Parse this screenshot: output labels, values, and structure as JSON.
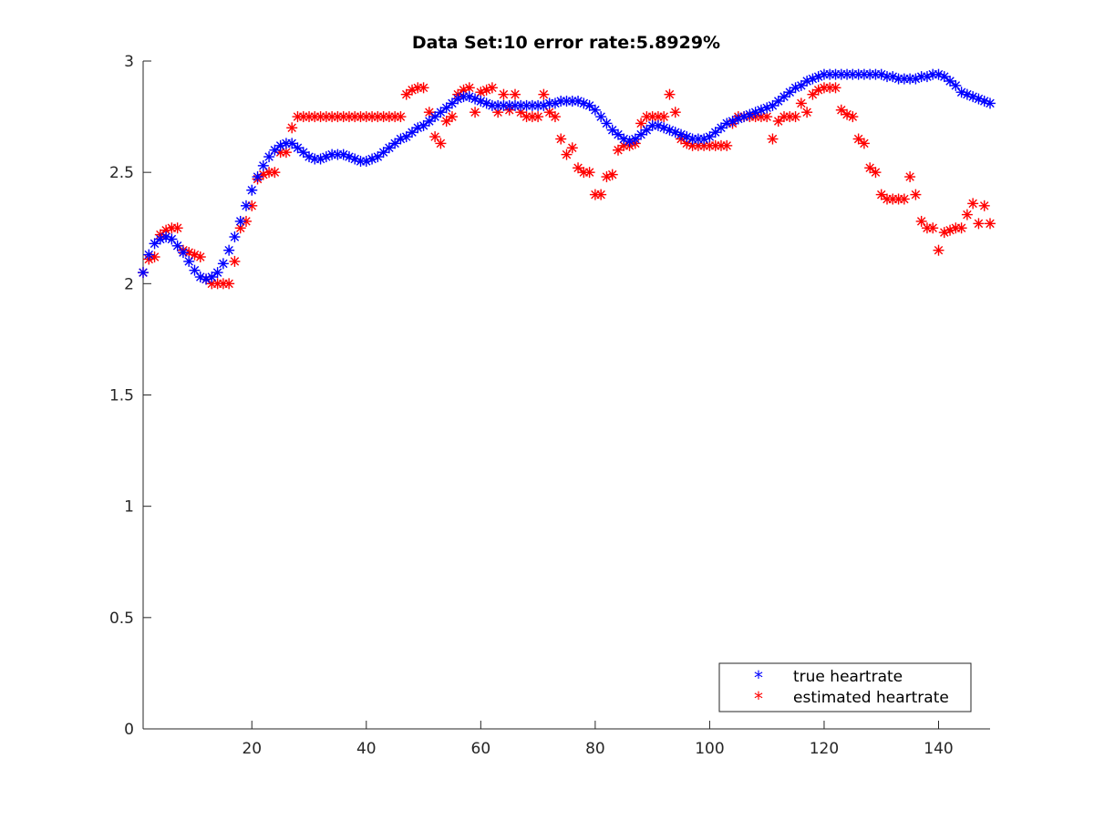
{
  "chart_data": {
    "type": "scatter",
    "title": "Data Set:10 error rate:5.8929%",
    "xlabel": "",
    "ylabel": "",
    "xlim": [
      1,
      149
    ],
    "ylim": [
      0,
      3
    ],
    "xticks": [
      20,
      40,
      60,
      80,
      100,
      120,
      140
    ],
    "yticks": [
      0,
      0.5,
      1,
      1.5,
      2,
      2.5,
      3
    ],
    "xtick_labels": [
      "20",
      "40",
      "60",
      "80",
      "100",
      "120",
      "140"
    ],
    "ytick_labels": [
      "0",
      "0.5",
      "1",
      "1.5",
      "2",
      "2.5",
      "3"
    ],
    "grid": false,
    "legend_position": "bottom-right",
    "marker": "*",
    "series": [
      {
        "name": "true heartrate",
        "color": "#0000ff",
        "x": [
          1,
          2,
          3,
          4,
          5,
          6,
          7,
          8,
          9,
          10,
          11,
          12,
          13,
          14,
          15,
          16,
          17,
          18,
          19,
          20,
          21,
          22,
          23,
          24,
          25,
          26,
          27,
          28,
          29,
          30,
          31,
          32,
          33,
          34,
          35,
          36,
          37,
          38,
          39,
          40,
          41,
          42,
          43,
          44,
          45,
          46,
          47,
          48,
          49,
          50,
          51,
          52,
          53,
          54,
          55,
          56,
          57,
          58,
          59,
          60,
          61,
          62,
          63,
          64,
          65,
          66,
          67,
          68,
          69,
          70,
          71,
          72,
          73,
          74,
          75,
          76,
          77,
          78,
          79,
          80,
          81,
          82,
          83,
          84,
          85,
          86,
          87,
          88,
          89,
          90,
          91,
          92,
          93,
          94,
          95,
          96,
          97,
          98,
          99,
          100,
          101,
          102,
          103,
          104,
          105,
          106,
          107,
          108,
          109,
          110,
          111,
          112,
          113,
          114,
          115,
          116,
          117,
          118,
          119,
          120,
          121,
          122,
          123,
          124,
          125,
          126,
          127,
          128,
          129,
          130,
          131,
          132,
          133,
          134,
          135,
          136,
          137,
          138,
          139,
          140,
          141,
          142,
          143,
          144,
          145,
          146,
          147,
          148,
          149
        ],
        "y": [
          2.05,
          2.13,
          2.18,
          2.2,
          2.21,
          2.2,
          2.17,
          2.14,
          2.1,
          2.06,
          2.03,
          2.02,
          2.03,
          2.05,
          2.09,
          2.15,
          2.21,
          2.28,
          2.35,
          2.42,
          2.48,
          2.53,
          2.57,
          2.6,
          2.62,
          2.63,
          2.63,
          2.61,
          2.59,
          2.57,
          2.56,
          2.56,
          2.57,
          2.58,
          2.58,
          2.58,
          2.57,
          2.56,
          2.55,
          2.55,
          2.56,
          2.57,
          2.59,
          2.61,
          2.63,
          2.65,
          2.66,
          2.68,
          2.7,
          2.71,
          2.73,
          2.75,
          2.77,
          2.79,
          2.81,
          2.83,
          2.84,
          2.84,
          2.83,
          2.82,
          2.81,
          2.8,
          2.8,
          2.8,
          2.8,
          2.8,
          2.8,
          2.8,
          2.8,
          2.8,
          2.8,
          2.81,
          2.81,
          2.82,
          2.82,
          2.82,
          2.82,
          2.81,
          2.8,
          2.78,
          2.75,
          2.72,
          2.69,
          2.67,
          2.65,
          2.64,
          2.65,
          2.67,
          2.69,
          2.71,
          2.71,
          2.7,
          2.69,
          2.68,
          2.67,
          2.66,
          2.65,
          2.65,
          2.65,
          2.66,
          2.68,
          2.7,
          2.72,
          2.73,
          2.74,
          2.75,
          2.76,
          2.77,
          2.78,
          2.79,
          2.8,
          2.82,
          2.84,
          2.86,
          2.88,
          2.89,
          2.91,
          2.92,
          2.93,
          2.94,
          2.94,
          2.94,
          2.94,
          2.94,
          2.94,
          2.94,
          2.94,
          2.94,
          2.94,
          2.94,
          2.93,
          2.93,
          2.92,
          2.92,
          2.92,
          2.92,
          2.93,
          2.93,
          2.94,
          2.94,
          2.93,
          2.91,
          2.89,
          2.86,
          2.85,
          2.84,
          2.83,
          2.82,
          2.81
        ]
      },
      {
        "name": "estimated heartrate",
        "color": "#ff0000",
        "x": [
          1,
          2,
          3,
          4,
          5,
          6,
          7,
          8,
          9,
          10,
          11,
          12,
          13,
          14,
          15,
          16,
          17,
          18,
          19,
          20,
          21,
          22,
          23,
          24,
          25,
          26,
          27,
          28,
          29,
          30,
          31,
          32,
          33,
          34,
          35,
          36,
          37,
          38,
          39,
          40,
          41,
          42,
          43,
          44,
          45,
          46,
          47,
          48,
          49,
          50,
          51,
          52,
          53,
          54,
          55,
          56,
          57,
          58,
          59,
          60,
          61,
          62,
          63,
          64,
          65,
          66,
          67,
          68,
          69,
          70,
          71,
          72,
          73,
          74,
          75,
          76,
          77,
          78,
          79,
          80,
          81,
          82,
          83,
          84,
          85,
          86,
          87,
          88,
          89,
          90,
          91,
          92,
          93,
          94,
          95,
          96,
          97,
          98,
          99,
          100,
          101,
          102,
          103,
          104,
          105,
          106,
          107,
          108,
          109,
          110,
          111,
          112,
          113,
          114,
          115,
          116,
          117,
          118,
          119,
          120,
          121,
          122,
          123,
          124,
          125,
          126,
          127,
          128,
          129,
          130,
          131,
          132,
          133,
          134,
          135,
          136,
          137,
          138,
          139,
          140,
          141,
          142,
          143,
          144,
          145,
          146,
          147,
          148,
          149
        ],
        "y": [
          2.05,
          2.11,
          2.12,
          2.22,
          2.24,
          2.25,
          2.25,
          2.15,
          2.14,
          2.13,
          2.12,
          2.02,
          2.0,
          2.0,
          2.0,
          2.0,
          2.1,
          2.25,
          2.28,
          2.35,
          2.47,
          2.49,
          2.5,
          2.5,
          2.59,
          2.59,
          2.7,
          2.75,
          2.75,
          2.75,
          2.75,
          2.75,
          2.75,
          2.75,
          2.75,
          2.75,
          2.75,
          2.75,
          2.75,
          2.75,
          2.75,
          2.75,
          2.75,
          2.75,
          2.75,
          2.75,
          2.85,
          2.87,
          2.88,
          2.88,
          2.77,
          2.66,
          2.63,
          2.73,
          2.75,
          2.85,
          2.87,
          2.88,
          2.77,
          2.86,
          2.87,
          2.88,
          2.77,
          2.85,
          2.78,
          2.85,
          2.77,
          2.75,
          2.75,
          2.75,
          2.85,
          2.77,
          2.75,
          2.65,
          2.58,
          2.61,
          2.52,
          2.5,
          2.5,
          2.4,
          2.4,
          2.48,
          2.49,
          2.6,
          2.62,
          2.62,
          2.63,
          2.72,
          2.75,
          2.75,
          2.75,
          2.75,
          2.85,
          2.77,
          2.65,
          2.63,
          2.62,
          2.62,
          2.62,
          2.62,
          2.62,
          2.62,
          2.62,
          2.72,
          2.75,
          2.75,
          2.75,
          2.75,
          2.75,
          2.75,
          2.65,
          2.73,
          2.75,
          2.75,
          2.75,
          2.81,
          2.77,
          2.85,
          2.87,
          2.88,
          2.88,
          2.88,
          2.78,
          2.76,
          2.75,
          2.65,
          2.63,
          2.52,
          2.5,
          2.4,
          2.38,
          2.38,
          2.38,
          2.38,
          2.48,
          2.4,
          2.28,
          2.25,
          2.25,
          2.15,
          2.23,
          2.24,
          2.25,
          2.25,
          2.31,
          2.36,
          2.27,
          2.35,
          2.27
        ]
      }
    ]
  }
}
